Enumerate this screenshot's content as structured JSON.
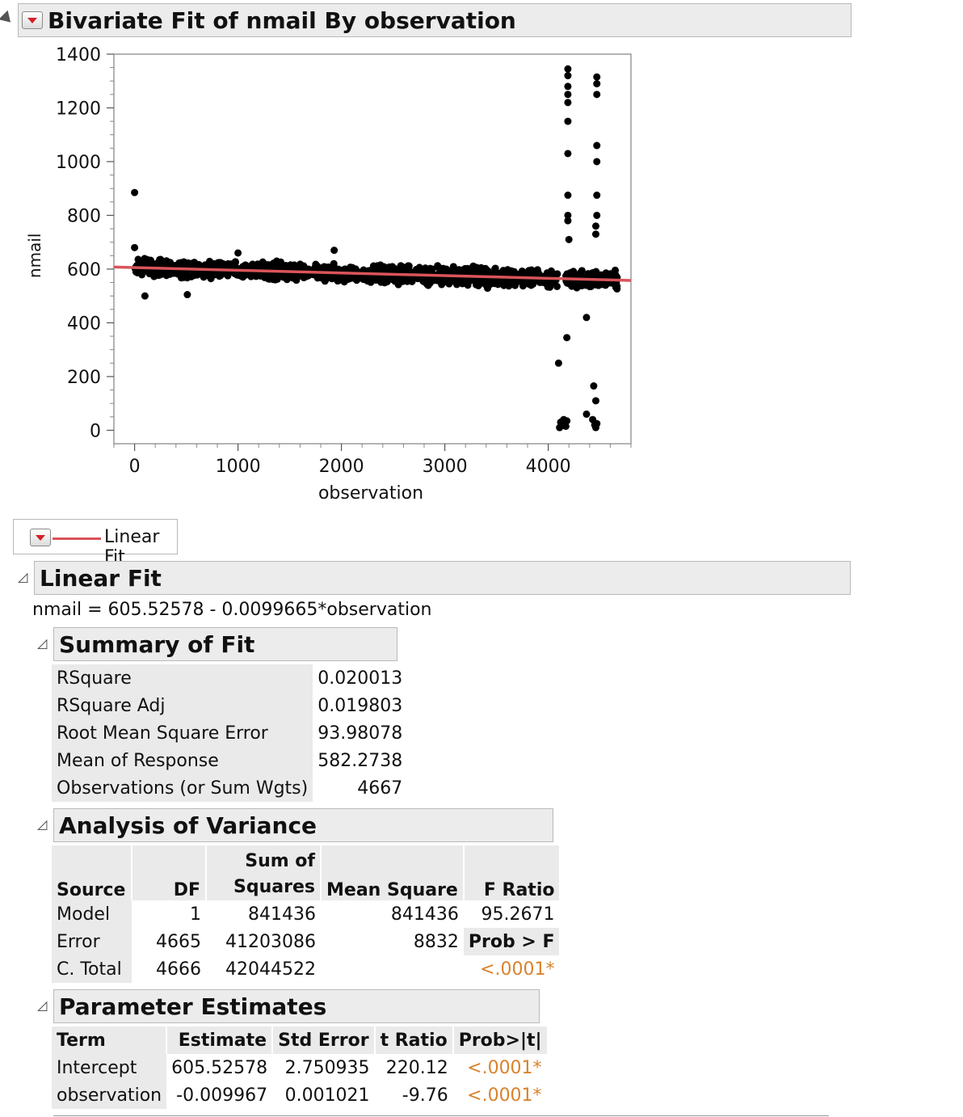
{
  "report": {
    "title": "Bivariate Fit of nmail By observation",
    "legend_label": "Linear Fit",
    "fit_title": "Linear Fit",
    "equation": "nmail = 605.52578 - 0.0099665*observation"
  },
  "chart_data": {
    "type": "scatter",
    "xlabel": "observation",
    "ylabel": "nmail",
    "xlim": [
      -200,
      4800
    ],
    "ylim": [
      -50,
      1400
    ],
    "xticks": [
      0,
      1000,
      2000,
      3000,
      4000
    ],
    "yticks": [
      0,
      200,
      400,
      600,
      800,
      1000,
      1200,
      1400
    ],
    "fit_line": {
      "intercept": 605.52578,
      "slope": -0.0099665,
      "color": "#d9545a"
    },
    "points_color": "#000000",
    "n_observations": 4667,
    "notable_points": [
      {
        "x": 0,
        "y": 885
      },
      {
        "x": 0,
        "y": 680
      },
      {
        "x": 100,
        "y": 500
      },
      {
        "x": 510,
        "y": 505
      },
      {
        "x": 1000,
        "y": 660
      },
      {
        "x": 1930,
        "y": 670
      },
      {
        "x": 4100,
        "y": 250
      },
      {
        "x": 4180,
        "y": 345
      },
      {
        "x": 4190,
        "y": 1345
      },
      {
        "x": 4190,
        "y": 1320
      },
      {
        "x": 4190,
        "y": 1280
      },
      {
        "x": 4190,
        "y": 1250
      },
      {
        "x": 4190,
        "y": 1220
      },
      {
        "x": 4190,
        "y": 1150
      },
      {
        "x": 4190,
        "y": 1030
      },
      {
        "x": 4190,
        "y": 875
      },
      {
        "x": 4190,
        "y": 800
      },
      {
        "x": 4190,
        "y": 780
      },
      {
        "x": 4200,
        "y": 710
      },
      {
        "x": 4370,
        "y": 420
      },
      {
        "x": 4370,
        "y": 60
      },
      {
        "x": 4470,
        "y": 1315
      },
      {
        "x": 4470,
        "y": 1290
      },
      {
        "x": 4470,
        "y": 1250
      },
      {
        "x": 4470,
        "y": 1060
      },
      {
        "x": 4470,
        "y": 1000
      },
      {
        "x": 4470,
        "y": 875
      },
      {
        "x": 4470,
        "y": 800
      },
      {
        "x": 4460,
        "y": 760
      },
      {
        "x": 4460,
        "y": 730
      },
      {
        "x": 4440,
        "y": 165
      },
      {
        "x": 4460,
        "y": 110
      }
    ],
    "bottom_cluster": [
      {
        "x": 4110,
        "y": 10
      },
      {
        "x": 4120,
        "y": 30
      },
      {
        "x": 4140,
        "y": 20
      },
      {
        "x": 4150,
        "y": 40
      },
      {
        "x": 4170,
        "y": 15
      },
      {
        "x": 4180,
        "y": 35
      },
      {
        "x": 4430,
        "y": 40
      },
      {
        "x": 4450,
        "y": 20
      },
      {
        "x": 4460,
        "y": 10
      },
      {
        "x": 4470,
        "y": 25
      }
    ]
  },
  "summary_of_fit": {
    "title": "Summary of Fit",
    "rows": [
      {
        "label": "RSquare",
        "value": "0.020013"
      },
      {
        "label": "RSquare Adj",
        "value": "0.019803"
      },
      {
        "label": "Root Mean Square Error",
        "value": "93.98078"
      },
      {
        "label": "Mean of Response",
        "value": "582.2738"
      },
      {
        "label": "Observations (or Sum Wgts)",
        "value": "4667"
      }
    ]
  },
  "anova": {
    "title": "Analysis of Variance",
    "headers": {
      "source": "Source",
      "df": "DF",
      "ss_top": "Sum of",
      "ss_bottom": "Squares",
      "ms": "Mean Square",
      "f": "F Ratio",
      "prob": "Prob > F"
    },
    "rows": [
      {
        "source": "Model",
        "df": "1",
        "ss": "841436",
        "ms": "841436",
        "f": "95.2671"
      },
      {
        "source": "Error",
        "df": "4665",
        "ss": "41203086",
        "ms": "8832"
      },
      {
        "source": "C. Total",
        "df": "4666",
        "ss": "42044522"
      }
    ],
    "prob_value": "<.0001*"
  },
  "parameter_estimates": {
    "title": "Parameter Estimates",
    "headers": {
      "term": "Term",
      "estimate": "Estimate",
      "stderr": "Std Error",
      "t": "t Ratio",
      "prob": "Prob>|t|"
    },
    "rows": [
      {
        "term": "Intercept",
        "estimate": "605.52578",
        "stderr": "2.750935",
        "t": "220.12",
        "prob": "<.0001*"
      },
      {
        "term": "observation",
        "estimate": "-0.009967",
        "stderr": "0.001021",
        "t": "-9.76",
        "prob": "<.0001*"
      }
    ]
  }
}
